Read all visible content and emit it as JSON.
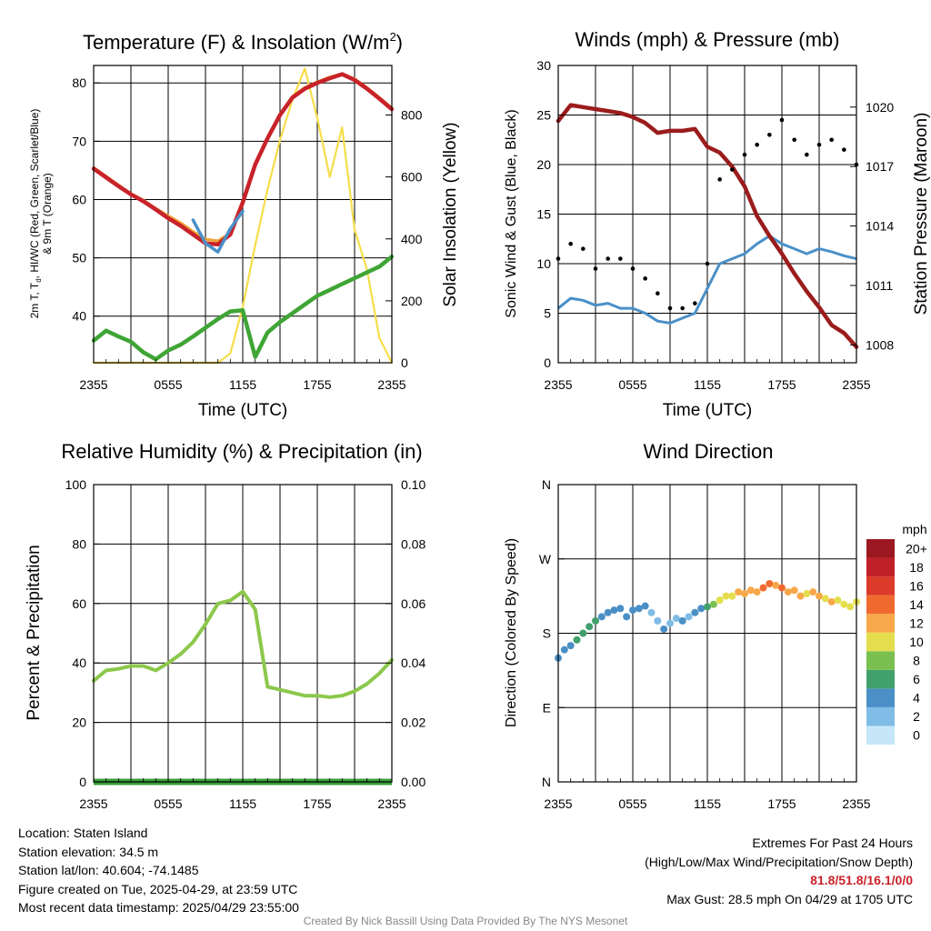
{
  "colors": {
    "temp_red": "#c8222a",
    "dew_green": "#3fa535",
    "nine_m_orange": "#f0a030",
    "hiwc_blue": "#4a90c8",
    "insolation_yellow": "#f5de4a",
    "wind_blue": "#4a90c8",
    "gust_black": "#000000",
    "pressure_maroon": "#9b1c1c",
    "rh_green": "#8cc84b",
    "precip_green": "#3a9e3a",
    "extremes_red": "#c8222a",
    "credit_gray": "#888888"
  },
  "panels": [
    {
      "title_main": "Temperature (F) & Insolation (W/m",
      "title_sup": "2",
      "title_tail": ")",
      "xlabel": "Time (UTC)",
      "ylabel_left_line1": "2m T, T",
      "ylabel_left_sub": "d",
      "ylabel_left_line1b": ", HI/WC (Red, Green, Scarlet/Blue)",
      "ylabel_left_line2": "& 9m T (Orange)",
      "ylabel_right": "Solar Insolation (Yellow)",
      "xticks": [
        "2355",
        "0555",
        "1155",
        "1755",
        "2355"
      ],
      "yticks_left": [
        "40",
        "50",
        "60",
        "70",
        "80"
      ],
      "yticks_right": [
        "0",
        "200",
        "400",
        "600",
        "800"
      ]
    },
    {
      "title_main": "Winds (mph) & Pressure (mb)",
      "xlabel": "Time (UTC)",
      "ylabel_left": "Sonic Wind & Gust (Blue, Black)",
      "ylabel_right": "Station Pressure (Maroon)",
      "xticks": [
        "2355",
        "0555",
        "1155",
        "1755",
        "2355"
      ],
      "yticks_left": [
        "0",
        "5",
        "10",
        "15",
        "20",
        "25",
        "30"
      ],
      "yticks_right": [
        "1008",
        "1011",
        "1014",
        "1017",
        "1020"
      ]
    },
    {
      "title_main": "Relative Humidity (%) & Precipitation (in)",
      "ylabel_left": "Percent & Precipitation",
      "xticks": [
        "2355",
        "0555",
        "1155",
        "1755",
        "2355"
      ],
      "yticks_left": [
        "0",
        "20",
        "40",
        "60",
        "80",
        "100"
      ],
      "yticks_right": [
        "0.00",
        "0.02",
        "0.04",
        "0.06",
        "0.08",
        "0.10"
      ]
    },
    {
      "title_main": "Wind Direction",
      "ylabel_left": "Direction (Colored By Speed)",
      "xticks": [
        "2355",
        "0555",
        "1155",
        "1755",
        "2355"
      ],
      "yticks_left": [
        "N",
        "E",
        "S",
        "W",
        "N"
      ],
      "colorbar_title": "mph",
      "colorbar_labels": [
        "0",
        "2",
        "4",
        "6",
        "8",
        "10",
        "12",
        "14",
        "16",
        "18",
        "20+"
      ],
      "colorbar_colors": [
        "#c6e7f7",
        "#7fbde6",
        "#4a8fc6",
        "#42a06c",
        "#79c050",
        "#e4de4e",
        "#f8a84a",
        "#f06a30",
        "#dc3a2a",
        "#c0202a",
        "#9c1820"
      ]
    }
  ],
  "chart_data": [
    {
      "type": "line",
      "title": "Temperature (F) & Insolation (W/m2)",
      "xlabel": "Time (UTC)",
      "ylabel": "2m T, Td, HI/WC (Red, Green, Scarlet/Blue) & 9m T (Orange)",
      "ylabel_right": "Solar Insolation (Yellow)",
      "x_hours_since_2355": [
        0,
        1,
        2,
        3,
        4,
        5,
        6,
        7,
        8,
        9,
        10,
        11,
        12,
        13,
        14,
        15,
        16,
        17,
        18,
        19,
        20,
        21,
        22,
        23,
        24
      ],
      "ylim": [
        32,
        83
      ],
      "ylim_right": [
        0,
        960
      ],
      "series": [
        {
          "name": "2m T (Red)",
          "axis": "left",
          "values": [
            65.3,
            63.8,
            62.3,
            60.9,
            59.7,
            58.3,
            56.8,
            55.5,
            54.0,
            52.5,
            52.3,
            54.0,
            59.5,
            66.0,
            70.5,
            74.5,
            77.5,
            79.0,
            80.0,
            80.8,
            81.5,
            80.5,
            79.0,
            77.3,
            75.5
          ]
        },
        {
          "name": "Td (Green)",
          "axis": "left",
          "values": [
            35.8,
            37.5,
            36.5,
            35.6,
            33.8,
            32.6,
            34.1,
            35.1,
            36.5,
            38.0,
            39.5,
            40.8,
            41.0,
            33.0,
            37.2,
            39.0,
            40.5,
            42.0,
            43.5,
            44.5,
            45.5,
            46.5,
            47.5,
            48.5,
            50.2
          ]
        },
        {
          "name": "9m T (Orange)",
          "axis": "left",
          "values": [
            65.5,
            64.0,
            62.5,
            61.0,
            59.9,
            58.5,
            57.2,
            56.0,
            54.5,
            53.2,
            52.9,
            54.3,
            59.8,
            66.2,
            70.7,
            74.7,
            77.7,
            79.2,
            80.2,
            81.0,
            81.6,
            80.7,
            79.2,
            77.5,
            75.7
          ]
        },
        {
          "name": "HI/WC (Scarlet/Blue)",
          "axis": "left",
          "values": [
            null,
            null,
            null,
            null,
            null,
            null,
            null,
            null,
            56.5,
            52.5,
            51.0,
            55.0,
            58.0,
            null,
            null,
            null,
            null,
            null,
            null,
            null,
            null,
            null,
            null,
            null,
            null
          ]
        },
        {
          "name": "Solar Insolation (Yellow)",
          "axis": "right",
          "values": [
            0,
            0,
            0,
            0,
            0,
            0,
            0,
            0,
            0,
            0,
            0,
            30,
            180,
            380,
            560,
            720,
            850,
            950,
            790,
            600,
            760,
            430,
            300,
            80,
            0
          ]
        }
      ]
    },
    {
      "type": "line",
      "title": "Winds (mph) & Pressure (mb)",
      "xlabel": "Time (UTC)",
      "ylabel": "Sonic Wind & Gust (Blue, Black)",
      "ylabel_right": "Station Pressure (Maroon)",
      "x_hours_since_2355": [
        0,
        1,
        2,
        3,
        4,
        5,
        6,
        7,
        8,
        9,
        10,
        11,
        12,
        13,
        14,
        15,
        16,
        17,
        18,
        19,
        20,
        21,
        22,
        23,
        24
      ],
      "ylim": [
        0,
        30
      ],
      "ylim_right": [
        1007.1,
        1022.1
      ],
      "series": [
        {
          "name": "Sonic Wind (Blue)",
          "axis": "left",
          "values": [
            5.5,
            6.5,
            6.3,
            5.8,
            6.0,
            5.5,
            5.5,
            5.0,
            4.2,
            4.0,
            4.5,
            5.0,
            7.5,
            10.0,
            10.5,
            11.0,
            12.0,
            12.8,
            12.0,
            11.5,
            11.0,
            11.5,
            11.2,
            10.8,
            10.5
          ]
        },
        {
          "name": "Gust (Black)",
          "axis": "left",
          "values": [
            10.5,
            12.0,
            11.5,
            9.5,
            10.5,
            10.5,
            9.5,
            8.5,
            7.0,
            5.5,
            5.5,
            6.0,
            10.0,
            18.5,
            19.5,
            21.0,
            22.0,
            23.0,
            24.5,
            22.5,
            21.0,
            22.0,
            22.5,
            21.5,
            20.0
          ]
        },
        {
          "name": "Station Pressure (Maroon)",
          "axis": "right",
          "values": [
            1019.3,
            1020.1,
            1020.0,
            1019.9,
            1019.8,
            1019.7,
            1019.5,
            1019.2,
            1018.7,
            1018.8,
            1018.8,
            1018.9,
            1018.0,
            1017.7,
            1017.0,
            1016.0,
            1014.5,
            1013.5,
            1012.6,
            1011.6,
            1010.7,
            1009.9,
            1009.0,
            1008.6,
            1007.9
          ]
        }
      ]
    },
    {
      "type": "line",
      "title": "Relative Humidity (%) & Precipitation (in)",
      "ylabel": "Percent & Precipitation",
      "x_hours_since_2355": [
        0,
        1,
        2,
        3,
        4,
        5,
        6,
        7,
        8,
        9,
        10,
        11,
        12,
        13,
        14,
        15,
        16,
        17,
        18,
        19,
        20,
        21,
        22,
        23,
        24
      ],
      "ylim": [
        0,
        100
      ],
      "ylim_right": [
        0,
        0.1
      ],
      "series": [
        {
          "name": "Relative Humidity",
          "axis": "left",
          "values": [
            34,
            37.5,
            38,
            39,
            39,
            37.5,
            40,
            43,
            47,
            53,
            60,
            61,
            64,
            58,
            32,
            31,
            30,
            29,
            29,
            28.5,
            29,
            30.5,
            33,
            36.5,
            41
          ]
        },
        {
          "name": "Precipitation",
          "axis": "right",
          "values": [
            0,
            0,
            0,
            0,
            0,
            0,
            0,
            0,
            0,
            0,
            0,
            0,
            0,
            0,
            0,
            0,
            0,
            0,
            0,
            0,
            0,
            0,
            0,
            0,
            0
          ]
        }
      ]
    },
    {
      "type": "scatter",
      "title": "Wind Direction",
      "ylabel": "Direction (Colored By Speed)",
      "x_hours_since_2355": [
        0,
        0.5,
        1,
        1.5,
        2,
        2.5,
        3,
        3.5,
        4,
        4.5,
        5,
        5.5,
        6,
        6.5,
        7,
        7.5,
        8,
        8.5,
        9,
        9.5,
        10,
        10.5,
        11,
        11.5,
        12,
        12.5,
        13,
        13.5,
        14,
        14.5,
        15,
        15.5,
        16,
        16.5,
        17,
        17.5,
        18,
        18.5,
        19,
        19.5,
        20,
        20.5,
        21,
        21.5,
        22,
        22.5,
        23,
        23.5,
        24
      ],
      "values_degrees": [
        150,
        160,
        165,
        172,
        180,
        188,
        195,
        200,
        205,
        208,
        210,
        200,
        208,
        210,
        213,
        205,
        195,
        185,
        192,
        198,
        195,
        200,
        205,
        210,
        212,
        215,
        220,
        225,
        225,
        230,
        228,
        232,
        230,
        235,
        240,
        238,
        235,
        230,
        232,
        225,
        228,
        230,
        225,
        222,
        218,
        220,
        215,
        212,
        218
      ],
      "speeds_mph": [
        4,
        5,
        5,
        6,
        6,
        6,
        6,
        5,
        5,
        4,
        4,
        4,
        5,
        4,
        4,
        3,
        3,
        4,
        3,
        3,
        4,
        3,
        4,
        5,
        7,
        9,
        10,
        11,
        11,
        12,
        12,
        13,
        12,
        14,
        15,
        13,
        14,
        13,
        12,
        12,
        11,
        12,
        13,
        11,
        12,
        10,
        11,
        10,
        11
      ],
      "ylim_degrees": [
        0,
        360
      ]
    }
  ],
  "info": {
    "location": "Location: Staten Island",
    "elevation": "Station elevation: 34.5 m",
    "latlon": "Station lat/lon: 40.604; -74.1485",
    "created": "Figure created on Tue, 2025-04-29, at 23:59 UTC",
    "recent": "Most recent data timestamp: 2025/04/29 23:55:00",
    "extremes_title": "Extremes For Past 24 Hours",
    "extremes_sub": "(High/Low/Max Wind/Precipitation/Snow Depth)",
    "extremes_values": "81.8/51.8/16.1/0/0",
    "max_gust": "Max Gust: 28.5 mph On 04/29 at 1705 UTC",
    "credit": "Created By Nick Bassill Using Data Provided By The NYS Mesonet"
  }
}
